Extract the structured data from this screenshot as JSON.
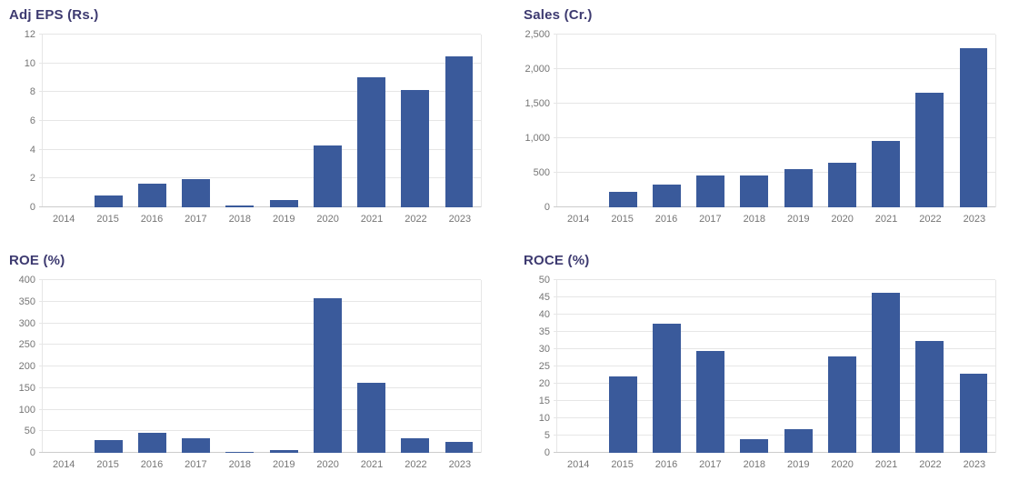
{
  "styles": {
    "bar_color": "#3a5a9b",
    "title_color": "#3d3a70",
    "tick_color": "#757575",
    "gridline_color": "#e6e6e6",
    "axis_line_color": "#cccccc",
    "background_color": "#ffffff"
  },
  "chart_data": [
    {
      "type": "bar",
      "title": "Adj EPS (Rs.)",
      "categories": [
        "2014",
        "2015",
        "2016",
        "2017",
        "2018",
        "2019",
        "2020",
        "2021",
        "2022",
        "2023"
      ],
      "values": [
        0,
        0.8,
        1.65,
        1.95,
        0.15,
        0.5,
        4.3,
        9.05,
        8.15,
        10.5
      ],
      "xlabel": "",
      "ylabel": "",
      "ylim": [
        0,
        12
      ],
      "ytick_values": [
        0,
        2,
        4,
        6,
        8,
        10,
        12
      ],
      "ytick_labels": [
        "0",
        "2",
        "4",
        "6",
        "8",
        "10",
        "12"
      ],
      "grid": true,
      "legend": "none"
    },
    {
      "type": "bar",
      "title": "Sales (Cr.)",
      "categories": [
        "2014",
        "2015",
        "2016",
        "2017",
        "2018",
        "2019",
        "2020",
        "2021",
        "2022",
        "2023"
      ],
      "values": [
        0,
        220,
        330,
        465,
        465,
        550,
        650,
        960,
        1660,
        2300
      ],
      "xlabel": "",
      "ylabel": "",
      "ylim": [
        0,
        2500
      ],
      "ytick_values": [
        0,
        500,
        1000,
        1500,
        2000,
        2500
      ],
      "ytick_labels": [
        "0",
        "500",
        "1,000",
        "1,500",
        "2,000",
        "2,500"
      ],
      "grid": true,
      "legend": "none"
    },
    {
      "type": "bar",
      "title": "ROE (%)",
      "categories": [
        "2014",
        "2015",
        "2016",
        "2017",
        "2018",
        "2019",
        "2020",
        "2021",
        "2022",
        "2023"
      ],
      "values": [
        0,
        30,
        46,
        34,
        2,
        7,
        357,
        163,
        33,
        25
      ],
      "xlabel": "",
      "ylabel": "",
      "ylim": [
        0,
        400
      ],
      "ytick_values": [
        0,
        50,
        100,
        150,
        200,
        250,
        300,
        350,
        400
      ],
      "ytick_labels": [
        "0",
        "50",
        "100",
        "150",
        "200",
        "250",
        "300",
        "350",
        "400"
      ],
      "grid": true,
      "legend": "none"
    },
    {
      "type": "bar",
      "title": "ROCE (%)",
      "categories": [
        "2014",
        "2015",
        "2016",
        "2017",
        "2018",
        "2019",
        "2020",
        "2021",
        "2022",
        "2023"
      ],
      "values": [
        0,
        22.2,
        37.3,
        29.4,
        4,
        6.9,
        27.8,
        46.4,
        32.4,
        22.8
      ],
      "xlabel": "",
      "ylabel": "",
      "ylim": [
        0,
        50
      ],
      "ytick_values": [
        0,
        5,
        10,
        15,
        20,
        25,
        30,
        35,
        40,
        45,
        50
      ],
      "ytick_labels": [
        "0",
        "5",
        "10",
        "15",
        "20",
        "25",
        "30",
        "35",
        "40",
        "45",
        "50"
      ],
      "grid": true,
      "legend": "none"
    }
  ]
}
